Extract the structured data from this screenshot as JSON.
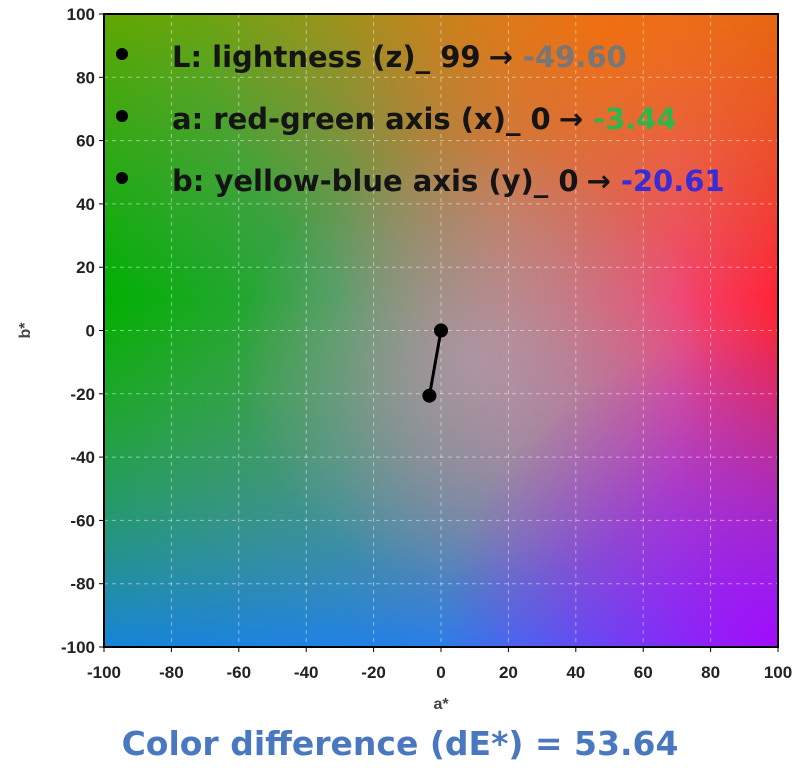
{
  "chart_data": {
    "type": "scatter",
    "xlabel": "a*",
    "ylabel": "b*",
    "xlim": [
      -100,
      100
    ],
    "ylim": [
      -100,
      100
    ],
    "xticks": [
      -100,
      -80,
      -60,
      -40,
      -20,
      0,
      20,
      40,
      60,
      80,
      100
    ],
    "yticks": [
      -100,
      -80,
      -60,
      -40,
      -20,
      0,
      20,
      40,
      60,
      80,
      100
    ],
    "grid": true,
    "background": "CIELAB a*-b* color plane",
    "series": [
      {
        "x": [
          0,
          -3.44
        ],
        "y": [
          0,
          -20.61
        ],
        "color": "#000000",
        "connected": true
      }
    ],
    "annotations": [
      {
        "label": "L: lightness (z)_ 99",
        "arrow": "→",
        "value": "-49.60",
        "color": "#777777"
      },
      {
        "label": "a: red-green axis (x)_ 0",
        "arrow": "→",
        "value": "-3.44",
        "color": "#2fb54a"
      },
      {
        "label": "b: yellow-blue axis (y)_ 0",
        "arrow": "→",
        "value": "-20.61",
        "color": "#3a2bd8"
      }
    ]
  },
  "footer": {
    "text": "Color difference (dE*) = 53.64",
    "color": "#4a78c0"
  }
}
